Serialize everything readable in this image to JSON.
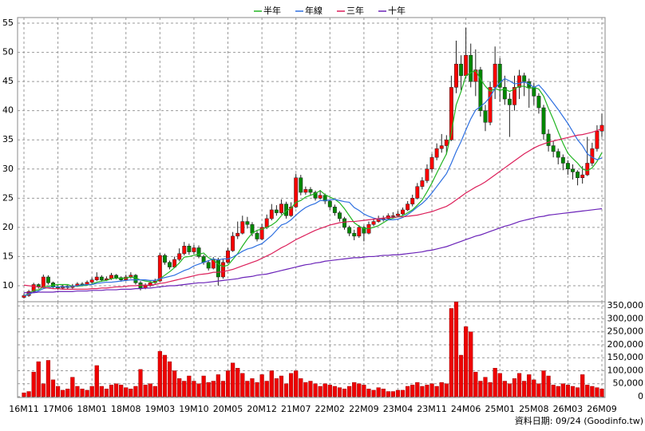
{
  "chart_data": {
    "type": "candlestick",
    "categories": [
      "16M11",
      null,
      null,
      null,
      null,
      null,
      null,
      "17M06",
      null,
      null,
      null,
      null,
      null,
      null,
      "18M01",
      null,
      null,
      null,
      null,
      null,
      null,
      "18M08",
      null,
      null,
      null,
      null,
      null,
      null,
      "19M03",
      null,
      null,
      null,
      null,
      null,
      null,
      "19M10",
      null,
      null,
      null,
      null,
      null,
      null,
      "20M05",
      null,
      null,
      null,
      null,
      null,
      null,
      "20M12",
      null,
      null,
      null,
      null,
      null,
      null,
      "21M07",
      null,
      null,
      null,
      null,
      null,
      null,
      "22M02",
      null,
      null,
      null,
      null,
      null,
      null,
      "22M09",
      null,
      null,
      null,
      null,
      null,
      null,
      "23M04",
      null,
      null,
      null,
      null,
      null,
      null,
      "23M11",
      null,
      null,
      null,
      null,
      null,
      null,
      "24M06",
      null,
      null,
      null,
      null,
      null,
      null,
      "25M01",
      null,
      null,
      null,
      null,
      null,
      null,
      "25M08",
      null,
      null,
      null,
      null,
      null,
      null,
      "26M03",
      null,
      null,
      null,
      null,
      null,
      null,
      "26M09"
    ],
    "open": [
      8.0,
      8.3,
      9.0,
      10.2,
      9.8,
      11.5,
      10.5,
      9.8,
      9.6,
      9.9,
      9.7,
      10.0,
      10.3,
      10.2,
      10.6,
      11.0,
      11.5,
      11.0,
      11.2,
      11.8,
      11.4,
      11.0,
      11.5,
      11.8,
      10.5,
      9.6,
      10.0,
      10.5,
      10.8,
      15.2,
      14.0,
      13.2,
      14.5,
      15.5,
      16.8,
      15.8,
      16.5,
      15.0,
      14.0,
      13.0,
      14.5,
      11.5,
      14.0,
      16.0,
      18.5,
      19.0,
      21.0,
      20.5,
      19.0,
      18.0,
      20.0,
      21.5,
      23.0,
      22.5,
      24.0,
      22.0,
      23.5,
      28.5,
      26.0,
      26.5,
      26.0,
      25.0,
      25.5,
      24.5,
      23.5,
      22.5,
      21.5,
      20.0,
      19.0,
      18.5,
      20.0,
      19.0,
      20.5,
      21.0,
      21.5,
      21.5,
      22.0,
      22.0,
      22.3,
      23.0,
      24.0,
      25.0,
      27.0,
      28.0,
      30.0,
      32.0,
      33.5,
      34.0,
      35.0,
      44.0,
      48.0,
      46.0,
      49.5,
      45.0,
      47.0,
      40.0,
      38.0,
      44.0,
      48.0,
      44.0,
      42.0,
      41.0,
      44.0,
      46.0,
      45.0,
      44.0,
      42.5,
      40.5,
      36.0,
      34.0,
      33.0,
      32.0,
      31.0,
      30.0,
      29.5,
      28.5,
      29.0,
      31.0,
      33.5,
      36.5
    ],
    "high": [
      8.7,
      9.3,
      10.5,
      10.4,
      11.9,
      11.8,
      10.7,
      10.1,
      10.2,
      10.1,
      10.3,
      10.6,
      10.6,
      10.9,
      11.4,
      12.3,
      11.8,
      11.6,
      12.2,
      12.0,
      11.6,
      11.9,
      12.3,
      12.0,
      10.8,
      10.4,
      10.8,
      11.2,
      15.6,
      15.5,
      14.3,
      15.0,
      16.4,
      17.5,
      17.2,
      17.0,
      16.9,
      15.3,
      14.4,
      14.9,
      14.8,
      14.5,
      16.5,
      19.2,
      21.0,
      22.0,
      21.8,
      20.9,
      19.4,
      20.6,
      22.2,
      24.0,
      23.8,
      24.8,
      24.4,
      24.3,
      29.2,
      29.0,
      27.0,
      26.9,
      26.3,
      26.4,
      25.8,
      24.8,
      23.9,
      22.8,
      21.8,
      20.3,
      19.6,
      20.4,
      20.3,
      21.0,
      21.5,
      22.0,
      22.0,
      22.4,
      22.6,
      22.8,
      23.4,
      24.5,
      25.6,
      27.6,
      28.6,
      30.8,
      32.6,
      34.4,
      36.0,
      35.8,
      46.0,
      52.0,
      49.5,
      54.2,
      51.5,
      50.5,
      47.5,
      41.0,
      45.0,
      51.0,
      49.0,
      46.0,
      43.0,
      46.0,
      47.0,
      46.5,
      45.5,
      44.8,
      43.0,
      41.0,
      36.8,
      34.8,
      33.5,
      32.5,
      31.5,
      30.8,
      29.8,
      30.5,
      35.5,
      34.5,
      37.5,
      39.5
    ],
    "low": [
      7.8,
      8.1,
      8.9,
      9.5,
      9.6,
      10.2,
      9.5,
      9.3,
      9.4,
      9.4,
      9.5,
      9.8,
      9.9,
      10.0,
      10.4,
      10.8,
      10.7,
      10.8,
      11.0,
      11.1,
      10.7,
      10.8,
      11.2,
      10.2,
      9.2,
      9.4,
      9.8,
      10.3,
      10.7,
      13.6,
      12.8,
      13.0,
      14.2,
      15.2,
      15.3,
      15.4,
      14.7,
      13.6,
      12.6,
      12.8,
      10.0,
      11.2,
      13.8,
      15.8,
      18.0,
      18.8,
      19.8,
      18.5,
      17.6,
      17.8,
      19.7,
      21.2,
      22.0,
      22.2,
      21.5,
      21.8,
      23.3,
      25.5,
      25.6,
      25.4,
      24.6,
      24.8,
      24.0,
      23.0,
      22.0,
      21.0,
      19.6,
      18.5,
      17.8,
      18.2,
      17.6,
      18.8,
      20.2,
      20.8,
      21.0,
      21.2,
      21.5,
      21.7,
      22.0,
      22.8,
      23.6,
      24.8,
      26.5,
      27.6,
      29.5,
      31.5,
      32.8,
      32.5,
      34.8,
      43.0,
      43.5,
      45.5,
      44.0,
      42.5,
      39.0,
      36.5,
      37.5,
      42.0,
      41.5,
      41.0,
      35.5,
      40.0,
      42.0,
      42.5,
      40.5,
      41.0,
      39.5,
      35.0,
      33.0,
      32.0,
      30.8,
      29.8,
      29.0,
      28.2,
      27.2,
      27.5,
      28.8,
      30.5,
      33.0,
      35.5
    ],
    "close": [
      8.3,
      9.0,
      10.2,
      9.8,
      11.5,
      10.5,
      9.8,
      9.6,
      9.9,
      9.7,
      10.0,
      10.3,
      10.2,
      10.6,
      11.0,
      11.5,
      11.0,
      11.2,
      11.8,
      11.4,
      11.0,
      11.5,
      11.8,
      10.5,
      9.6,
      10.0,
      10.5,
      10.8,
      15.2,
      14.0,
      13.2,
      14.5,
      15.5,
      16.8,
      15.8,
      16.5,
      15.0,
      14.0,
      13.0,
      14.5,
      11.5,
      14.0,
      16.0,
      18.5,
      19.0,
      21.0,
      20.5,
      19.0,
      18.0,
      20.0,
      21.5,
      23.0,
      22.5,
      24.0,
      22.0,
      23.5,
      28.5,
      26.0,
      26.5,
      26.0,
      25.0,
      25.5,
      24.5,
      23.5,
      22.5,
      21.5,
      20.0,
      19.0,
      18.5,
      20.0,
      19.0,
      20.5,
      21.0,
      21.5,
      21.5,
      22.0,
      22.0,
      22.3,
      23.0,
      24.0,
      25.0,
      27.0,
      28.0,
      30.0,
      32.0,
      33.5,
      34.0,
      35.0,
      44.0,
      48.0,
      46.0,
      49.5,
      45.0,
      47.0,
      40.0,
      38.0,
      44.0,
      48.0,
      44.0,
      42.0,
      41.0,
      44.0,
      46.0,
      45.0,
      44.0,
      42.5,
      40.5,
      36.0,
      34.0,
      33.0,
      32.0,
      31.0,
      30.0,
      29.5,
      28.5,
      29.0,
      31.0,
      33.5,
      36.5,
      37.5
    ],
    "up_color": "#ff0000",
    "down_color": "#008800",
    "lines": [
      {
        "name": "半年",
        "color": "#22b522",
        "values": [
          8.3,
          8.6,
          9.2,
          9.3,
          9.8,
          9.9,
          10.1,
          10.2,
          10.2,
          10.2,
          9.9,
          9.9,
          10.0,
          10.1,
          10.3,
          10.6,
          10.8,
          10.9,
          11.2,
          11.3,
          11.3,
          11.3,
          11.5,
          11.3,
          11.0,
          10.8,
          10.7,
          10.5,
          11.2,
          11.8,
          12.4,
          13.1,
          13.9,
          14.9,
          15.0,
          15.2,
          15.4,
          15.6,
          14.8,
          14.4,
          13.7,
          13.3,
          13.5,
          14.5,
          15.5,
          16.8,
          18.0,
          19.0,
          19.5,
          19.7,
          20.0,
          20.4,
          21.0,
          22.0,
          22.8,
          23.3,
          24.3,
          24.6,
          25.2,
          25.5,
          25.8,
          26.3,
          25.6,
          25.2,
          24.8,
          24.2,
          23.2,
          22.0,
          20.8,
          20.2,
          19.8,
          19.8,
          20.0,
          20.3,
          20.8,
          21.3,
          21.6,
          21.8,
          22.0,
          22.5,
          23.0,
          23.8,
          24.7,
          26.1,
          27.6,
          29.3,
          31.0,
          32.6,
          36.3,
          41.0,
          43.3,
          46.0,
          46.5,
          46.9,
          45.4,
          44.2,
          43.3,
          43.8,
          43.5,
          43.7,
          43.3,
          43.7,
          44.2,
          44.2,
          43.8,
          44.0,
          43.7,
          42.5,
          40.4,
          38.5,
          36.4,
          34.4,
          32.7,
          31.8,
          31.0,
          30.0,
          29.7,
          30.2,
          31.3,
          32.8
        ]
      },
      {
        "name": "年線",
        "color": "#2d6fe0",
        "values": [
          8.3,
          8.5,
          8.9,
          9.1,
          9.5,
          9.7,
          9.8,
          9.8,
          9.8,
          9.8,
          9.9,
          10.0,
          10.1,
          10.2,
          10.2,
          10.4,
          10.5,
          10.6,
          10.6,
          10.7,
          10.8,
          10.9,
          11.0,
          11.0,
          11.0,
          11.0,
          10.9,
          10.9,
          11.2,
          11.4,
          11.6,
          11.8,
          12.2,
          12.6,
          12.9,
          13.4,
          13.7,
          14.0,
          14.3,
          14.6,
          14.4,
          14.6,
          14.6,
          14.9,
          15.4,
          15.9,
          16.3,
          16.5,
          16.9,
          17.2,
          17.9,
          18.6,
          19.5,
          20.4,
          20.7,
          21.3,
          22.1,
          22.8,
          23.4,
          23.8,
          24.1,
          24.6,
          24.6,
          24.7,
          24.8,
          24.6,
          24.4,
          24.3,
          23.4,
          22.9,
          22.3,
          21.9,
          21.6,
          21.4,
          21.3,
          21.3,
          21.3,
          21.4,
          21.7,
          22.2,
          22.8,
          23.5,
          24.1,
          24.9,
          25.9,
          27.0,
          28.1,
          29.2,
          31.0,
          33.0,
          34.7,
          36.7,
          38.6,
          40.1,
          40.7,
          41.4,
          42.4,
          43.8,
          44.8,
          45.5,
          45.1,
          44.6,
          44.7,
          44.9,
          44.6,
          44.0,
          44.4,
          43.5,
          42.4,
          41.3,
          40.2,
          39.0,
          37.8,
          36.4,
          35.0,
          34.0,
          32.6,
          32.0,
          31.6,
          31.9
        ]
      },
      {
        "name": "三年",
        "color": "#dc1f5a",
        "values": [
          10.1,
          10.0,
          9.9,
          9.8,
          9.7,
          9.6,
          9.5,
          9.5,
          9.4,
          9.4,
          9.4,
          9.4,
          9.4,
          9.4,
          9.5,
          9.5,
          9.6,
          9.6,
          9.7,
          9.8,
          9.8,
          9.9,
          10.0,
          10.0,
          10.1,
          10.1,
          10.1,
          10.2,
          10.4,
          10.5,
          10.7,
          10.9,
          11.1,
          11.3,
          11.5,
          11.7,
          11.9,
          12.0,
          12.1,
          12.3,
          12.3,
          12.4,
          12.6,
          12.8,
          13.1,
          13.4,
          13.7,
          14.0,
          14.3,
          14.7,
          15.1,
          15.5,
          16.0,
          16.5,
          16.9,
          17.4,
          17.9,
          18.3,
          18.7,
          19.1,
          19.5,
          19.8,
          20.1,
          20.4,
          20.6,
          20.8,
          20.9,
          21.0,
          21.0,
          21.1,
          21.2,
          21.3,
          21.4,
          21.5,
          21.6,
          21.7,
          21.7,
          21.8,
          21.8,
          21.9,
          22.0,
          22.1,
          22.3,
          22.5,
          22.7,
          23.0,
          23.3,
          23.6,
          24.1,
          24.7,
          25.3,
          25.9,
          26.4,
          26.9,
          27.3,
          27.8,
          28.4,
          29.0,
          29.6,
          30.2,
          30.8,
          31.4,
          32.0,
          32.6,
          33.1,
          33.6,
          34.0,
          34.3,
          34.6,
          34.8,
          35.0,
          35.2,
          35.4,
          35.6,
          35.8,
          35.9,
          36.1,
          36.3,
          36.6,
          36.9
        ]
      },
      {
        "name": "十年",
        "color": "#6a22b8",
        "values": [
          8.8,
          8.8,
          8.8,
          8.9,
          8.9,
          8.9,
          8.9,
          9.0,
          9.0,
          9.0,
          9.0,
          9.1,
          9.1,
          9.1,
          9.2,
          9.2,
          9.2,
          9.3,
          9.3,
          9.3,
          9.4,
          9.4,
          9.4,
          9.5,
          9.5,
          9.6,
          9.6,
          9.7,
          9.8,
          9.9,
          10.0,
          10.0,
          10.1,
          10.2,
          10.3,
          10.4,
          10.5,
          10.5,
          10.6,
          10.7,
          10.8,
          10.9,
          11.0,
          11.1,
          11.2,
          11.4,
          11.5,
          11.6,
          11.8,
          11.9,
          12.0,
          12.2,
          12.4,
          12.6,
          12.8,
          13.0,
          13.2,
          13.4,
          13.6,
          13.7,
          13.9,
          14.0,
          14.2,
          14.3,
          14.4,
          14.5,
          14.6,
          14.7,
          14.8,
          14.8,
          14.9,
          15.0,
          15.0,
          15.1,
          15.2,
          15.2,
          15.3,
          15.3,
          15.4,
          15.5,
          15.6,
          15.7,
          15.8,
          16.0,
          16.1,
          16.3,
          16.5,
          16.7,
          17.0,
          17.3,
          17.6,
          17.9,
          18.2,
          18.5,
          18.7,
          19.0,
          19.3,
          19.6,
          19.9,
          20.2,
          20.4,
          20.7,
          21.0,
          21.2,
          21.4,
          21.6,
          21.8,
          21.9,
          22.1,
          22.2,
          22.3,
          22.4,
          22.5,
          22.6,
          22.7,
          22.8,
          22.9,
          23.0,
          23.1,
          23.2
        ]
      }
    ],
    "ylim": [
      7.26,
      55.96
    ],
    "yticks": [
      10,
      15,
      20,
      25,
      30,
      35,
      40,
      45,
      50,
      55
    ],
    "grid": true,
    "volume": {
      "color": "#ee0000",
      "values": [
        15000,
        20000,
        95000,
        135000,
        50000,
        140000,
        65000,
        40000,
        25000,
        30000,
        75000,
        40000,
        30000,
        25000,
        40000,
        120000,
        40000,
        30000,
        45000,
        50000,
        45000,
        35000,
        30000,
        40000,
        105000,
        45000,
        50000,
        40000,
        175000,
        160000,
        135000,
        100000,
        70000,
        60000,
        80000,
        60000,
        50000,
        80000,
        55000,
        60000,
        85000,
        60000,
        100000,
        130000,
        110000,
        90000,
        60000,
        70000,
        55000,
        85000,
        60000,
        100000,
        70000,
        80000,
        50000,
        90000,
        100000,
        70000,
        55000,
        60000,
        50000,
        40000,
        50000,
        45000,
        40000,
        35000,
        30000,
        40000,
        55000,
        50000,
        45000,
        30000,
        25000,
        35000,
        30000,
        20000,
        20000,
        25000,
        25000,
        40000,
        45000,
        55000,
        40000,
        45000,
        50000,
        40000,
        55000,
        50000,
        340000,
        365000,
        160000,
        270000,
        250000,
        95000,
        60000,
        75000,
        55000,
        110000,
        90000,
        60000,
        50000,
        70000,
        90000,
        60000,
        85000,
        65000,
        50000,
        100000,
        80000,
        45000,
        40000,
        50000,
        45000,
        40000,
        35000,
        85000,
        45000,
        40000,
        35000,
        30000
      ],
      "ylim": [
        0,
        366000
      ],
      "yticks": [
        0,
        {
          "value": 50000,
          "label": "50,000"
        },
        {
          "value": 100000,
          "label": "100,000"
        },
        {
          "value": 150000,
          "label": "150,000"
        },
        {
          "value": 200000,
          "label": "200,000"
        },
        {
          "value": 250000,
          "label": "250,000"
        },
        {
          "value": 300000,
          "label": "300,000"
        },
        {
          "value": 350000,
          "label": "350,000"
        }
      ]
    },
    "source_note": "資料日期: 09/24  (Goodinfo.tw)"
  }
}
